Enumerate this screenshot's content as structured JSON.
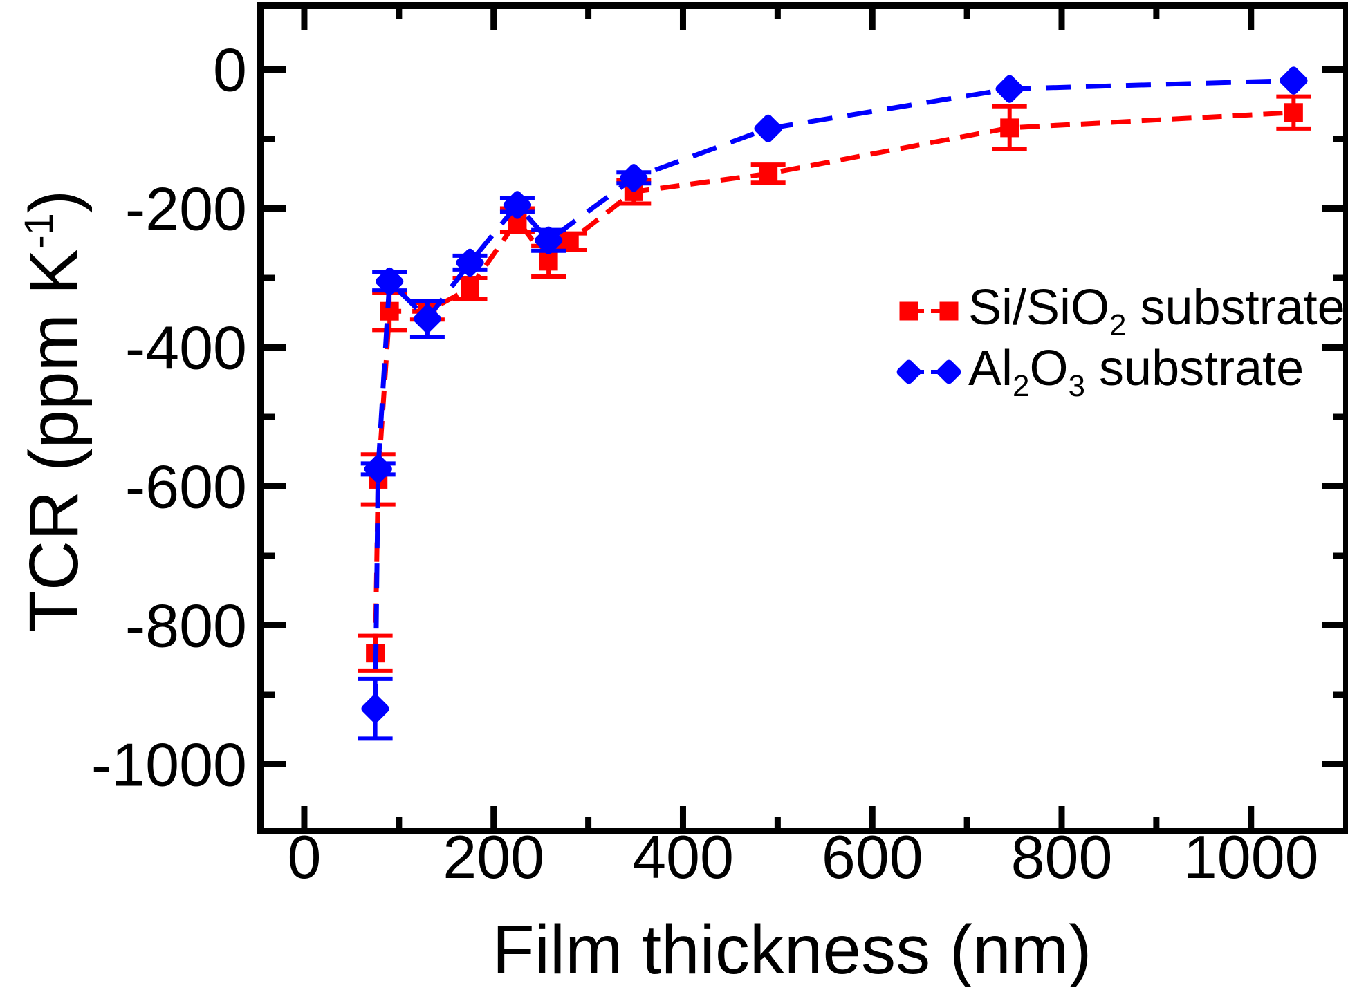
{
  "page": {
    "background": "#ffffff"
  },
  "chart_data": {
    "type": "line",
    "title": "",
    "xlabel": "Film thickness (nm)",
    "ylabel": "TCR (ppm K-1)",
    "ylabel_parts": [
      {
        "text": "TCR (ppm K"
      },
      {
        "text": "-1",
        "sup": true
      },
      {
        "text": ")"
      }
    ],
    "xlim": [
      -46,
      1101
    ],
    "ylim": [
      -1096,
      92
    ],
    "grid": false,
    "legend_position": "inside-right",
    "axis_color": "#000000",
    "x_ticks_major": {
      "values": [
        0,
        200,
        400,
        600,
        800,
        1000
      ],
      "labels": [
        "0",
        "200",
        "400",
        "600",
        "800",
        "1000"
      ]
    },
    "x_ticks_minor": [
      100,
      300,
      500,
      700,
      900
    ],
    "y_ticks_major": {
      "values": [
        0,
        -200,
        -400,
        -600,
        -800,
        -1000
      ],
      "labels": [
        "0",
        "-200",
        "-400",
        "-600",
        "-800",
        "-1000"
      ]
    },
    "y_ticks_minor": [
      -100,
      -300,
      -500,
      -700,
      -900
    ],
    "series": [
      {
        "name": "Si/SiO2 substrate",
        "label_parts": [
          {
            "text": "Si/SiO"
          },
          {
            "text": "2",
            "sub": true
          },
          {
            "text": " substrate"
          }
        ],
        "color": "#ff0000",
        "marker": "square",
        "linestyle": "dashed",
        "points": [
          {
            "x": 75,
            "y": -840,
            "err": 25
          },
          {
            "x": 78,
            "y": -590,
            "err": 36
          },
          {
            "x": 90,
            "y": -348,
            "err": 27
          },
          {
            "x": 130,
            "y": -348,
            "err": 12
          },
          {
            "x": 175,
            "y": -315,
            "err": 15
          },
          {
            "x": 225,
            "y": -217,
            "err": 17
          },
          {
            "x": 258,
            "y": -276,
            "err": 22
          },
          {
            "x": 280,
            "y": -248,
            "err": 12
          },
          {
            "x": 348,
            "y": -176,
            "err": 17
          },
          {
            "x": 490,
            "y": -150,
            "err": 13
          },
          {
            "x": 745,
            "y": -84,
            "err": 31
          },
          {
            "x": 1045,
            "y": -62,
            "err": 23
          }
        ]
      },
      {
        "name": "Al2O3 substrate",
        "label_parts": [
          {
            "text": "Al"
          },
          {
            "text": "2",
            "sub": true
          },
          {
            "text": "O"
          },
          {
            "text": "3",
            "sub": true
          },
          {
            "text": " substrate"
          }
        ],
        "color": "#0000ff",
        "marker": "diamond",
        "linestyle": "dashed",
        "points": [
          {
            "x": 75,
            "y": -920,
            "err": 43
          },
          {
            "x": 78,
            "y": -575,
            "err": 8
          },
          {
            "x": 90,
            "y": -305,
            "err": 13
          },
          {
            "x": 130,
            "y": -359,
            "err": 26
          },
          {
            "x": 175,
            "y": -278,
            "err": 10
          },
          {
            "x": 225,
            "y": -195,
            "err": 10
          },
          {
            "x": 258,
            "y": -246,
            "err": 15
          },
          {
            "x": 348,
            "y": -156,
            "err": 8
          },
          {
            "x": 490,
            "y": -85,
            "err": 0
          },
          {
            "x": 745,
            "y": -28,
            "err": 0
          },
          {
            "x": 1045,
            "y": -16,
            "err": 0
          }
        ]
      }
    ]
  }
}
